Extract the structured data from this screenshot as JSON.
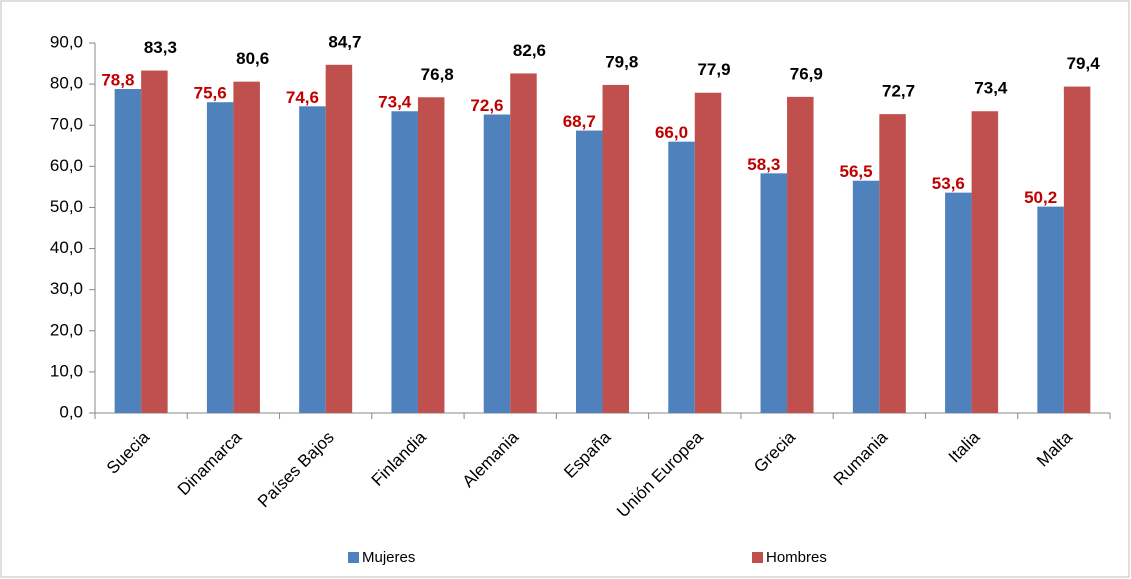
{
  "chart_data": {
    "type": "bar",
    "categories": [
      "Suecia",
      "Dinamarca",
      "Países Bajos",
      "Finlandia",
      "Alemania",
      "España",
      "Unión Europea",
      "Grecia",
      "Rumania",
      "Italia",
      "Malta"
    ],
    "series": [
      {
        "name": "Mujeres",
        "color": "#4f81bd",
        "label_color": "#c00000",
        "values": [
          78.8,
          75.6,
          74.6,
          73.4,
          72.6,
          68.7,
          66.0,
          58.3,
          56.5,
          53.6,
          50.2
        ],
        "value_labels": [
          "78,8",
          "75,6",
          "74,6",
          "73,4",
          "72,6",
          "68,7",
          "66,0",
          "58,3",
          "56,5",
          "53,6",
          "50,2"
        ]
      },
      {
        "name": "Hombres",
        "color": "#c0504d",
        "label_color": "#000000",
        "values": [
          83.3,
          80.6,
          84.7,
          76.8,
          82.6,
          79.8,
          77.9,
          76.9,
          72.7,
          73.4,
          79.4
        ],
        "value_labels": [
          "83,3",
          "80,6",
          "84,7",
          "76,8",
          "82,6",
          "79,8",
          "77,9",
          "76,9",
          "72,7",
          "73,4",
          "79,4"
        ]
      }
    ],
    "ylim": [
      0,
      90
    ],
    "yticks": [
      {
        "value": 0,
        "label": "0,0"
      },
      {
        "value": 10,
        "label": "10,0"
      },
      {
        "value": 20,
        "label": "20,0"
      },
      {
        "value": 30,
        "label": "30,0"
      },
      {
        "value": 40,
        "label": "40,0"
      },
      {
        "value": 50,
        "label": "50,0"
      },
      {
        "value": 60,
        "label": "60,0"
      },
      {
        "value": 70,
        "label": "70,0"
      },
      {
        "value": 80,
        "label": "80,0"
      },
      {
        "value": 90,
        "label": "90,0"
      }
    ],
    "grid": false,
    "legend": "bottom"
  }
}
